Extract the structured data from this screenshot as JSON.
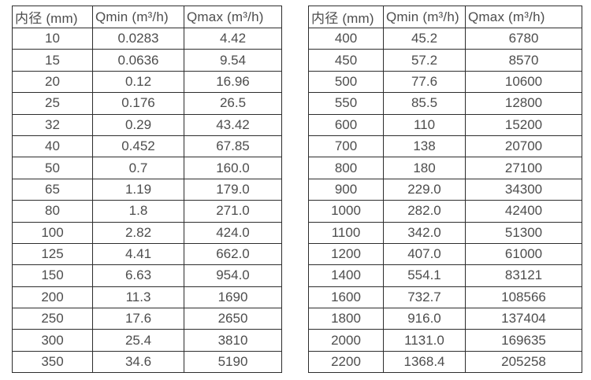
{
  "colors": {
    "background": "#ffffff",
    "table_border": "#2d2d2d",
    "table_text": "#4d4d4d"
  },
  "chart_data": [
    {
      "type": "table",
      "title": "",
      "columns": [
        "内径 (mm)",
        "Qmin (m³/h)",
        "Qmax (m³/h)"
      ],
      "rows": [
        [
          "10",
          "0.0283",
          "4.42"
        ],
        [
          "15",
          "0.0636",
          "9.54"
        ],
        [
          "20",
          "0.12",
          "16.96"
        ],
        [
          "25",
          "0.176",
          "26.5"
        ],
        [
          "32",
          "0.29",
          "43.42"
        ],
        [
          "40",
          "0.452",
          "67.85"
        ],
        [
          "50",
          "0.7",
          "160.0"
        ],
        [
          "65",
          "1.19",
          "179.0"
        ],
        [
          "80",
          "1.8",
          "271.0"
        ],
        [
          "100",
          "2.82",
          "424.0"
        ],
        [
          "125",
          "4.41",
          "662.0"
        ],
        [
          "150",
          "6.63",
          "954.0"
        ],
        [
          "200",
          "11.3",
          "1690"
        ],
        [
          "250",
          "17.6",
          "2650"
        ],
        [
          "300",
          "25.4",
          "3810"
        ],
        [
          "350",
          "34.6",
          "5190"
        ]
      ]
    },
    {
      "type": "table",
      "title": "",
      "columns": [
        "内径 (mm)",
        "Qmin (m³/h)",
        "Qmax (m³/h)"
      ],
      "rows": [
        [
          "400",
          "45.2",
          "6780"
        ],
        [
          "450",
          "57.2",
          "8570"
        ],
        [
          "500",
          "77.6",
          "10600"
        ],
        [
          "550",
          "85.5",
          "12800"
        ],
        [
          "600",
          "110",
          "15200"
        ],
        [
          "700",
          "138",
          "20700"
        ],
        [
          "800",
          "180",
          "27100"
        ],
        [
          "900",
          "229.0",
          "34300"
        ],
        [
          "1000",
          "282.0",
          "42400"
        ],
        [
          "1100",
          "342.0",
          "51300"
        ],
        [
          "1200",
          "407.0",
          "61000"
        ],
        [
          "1400",
          "554.1",
          "83121"
        ],
        [
          "1600",
          "732.7",
          "108566"
        ],
        [
          "1800",
          "916.0",
          "137404"
        ],
        [
          "2000",
          "1131.0",
          "169635"
        ],
        [
          "2200",
          "1368.4",
          "205258"
        ]
      ]
    }
  ]
}
